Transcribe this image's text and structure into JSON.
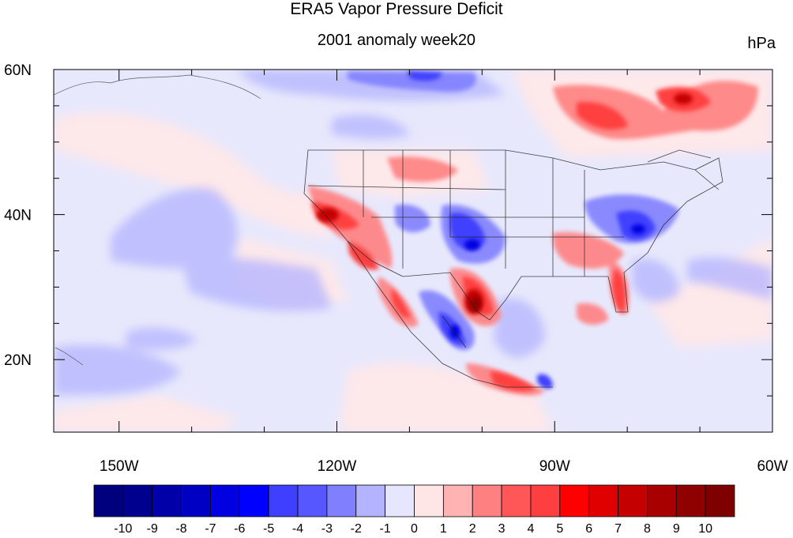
{
  "figure": {
    "title": "ERA5 Vapor Pressure Deficit",
    "subtitle": "2001 anomaly week20",
    "units": "hPa"
  },
  "axes": {
    "lon_labels": [
      "150W",
      "120W",
      "90W",
      "60W"
    ],
    "lat_labels": [
      "60N",
      "40N",
      "20N"
    ],
    "lon_range": [
      -159,
      -60
    ],
    "lat_range": [
      10,
      60
    ]
  },
  "colorbar": {
    "levels": [
      "-10",
      "-9",
      "-8",
      "-7",
      "-6",
      "-5",
      "-4",
      "-3",
      "-2",
      "-1",
      "0",
      "1",
      "2",
      "3",
      "4",
      "5",
      "6",
      "7",
      "8",
      "9",
      "10"
    ],
    "colors": [
      "#00007f",
      "#00008f",
      "#0000a8",
      "#0000c4",
      "#0000e0",
      "#0000ff",
      "#3f3fff",
      "#5757ff",
      "#8080ff",
      "#b3b3ff",
      "#e6e6ff",
      "#ffe6e6",
      "#ffb3b3",
      "#ff8080",
      "#ff5757",
      "#ff3f3f",
      "#ff0000",
      "#e00000",
      "#c40000",
      "#a80000",
      "#8f0000",
      "#7f0000"
    ]
  },
  "map_regions": [
    {
      "name": "alaska-negative",
      "lon": -138,
      "lat": 57,
      "sign": "negative",
      "magnitude": 3
    },
    {
      "name": "canada-positive",
      "lon": -73,
      "lat": 54,
      "sign": "positive",
      "magnitude": 5
    },
    {
      "name": "california-positive",
      "lon": -121,
      "lat": 39,
      "sign": "positive",
      "magnitude": 7
    },
    {
      "name": "colorado-negative",
      "lon": -104,
      "lat": 37,
      "sign": "negative",
      "magnitude": 5
    },
    {
      "name": "texas-positive",
      "lon": -101,
      "lat": 29,
      "sign": "positive",
      "magnitude": 8
    },
    {
      "name": "northeast-negative",
      "lon": -80,
      "lat": 38,
      "sign": "negative",
      "magnitude": 5
    },
    {
      "name": "florida-positive",
      "lon": -82,
      "lat": 29,
      "sign": "positive",
      "magnitude": 6
    },
    {
      "name": "mexico-negative",
      "lon": -104,
      "lat": 23,
      "sign": "negative",
      "magnitude": 6
    }
  ]
}
